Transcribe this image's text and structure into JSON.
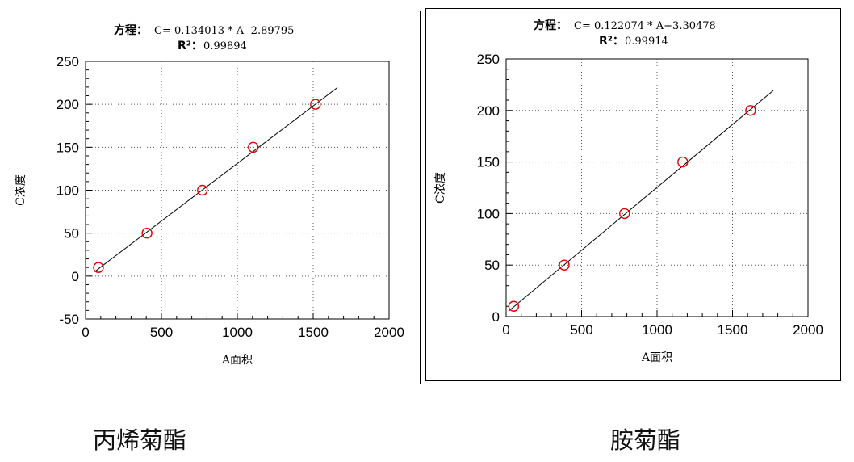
{
  "chart_data": [
    {
      "type": "scatter",
      "equation_prefix": "方程：",
      "equation": "C= 0.134013 * A- 2.89795",
      "r2_label": "R²：",
      "r2_value": "0.99894",
      "xlabel": "A面积",
      "ylabel": "C浓度",
      "xlim": [
        0,
        2000
      ],
      "ylim": [
        -50,
        250
      ],
      "xticks": [
        "0",
        "500",
        "1000",
        "1500",
        "2000"
      ],
      "yticks": [
        "-50",
        "0",
        "50",
        "100",
        "150",
        "200",
        "250"
      ],
      "grid": true,
      "points": {
        "x": [
          85,
          405,
          770,
          1105,
          1515
        ],
        "y": [
          10,
          50,
          100,
          150,
          200
        ]
      },
      "fit_line": {
        "slope": 0.134013,
        "intercept": -2.89795,
        "x_range": [
          60,
          1660
        ]
      },
      "caption": "丙烯菊酯"
    },
    {
      "type": "scatter",
      "equation_prefix": "方程：",
      "equation": "C= 0.122074 * A+3.30478",
      "r2_label": "R²：",
      "r2_value": "0.99914",
      "xlabel": "A面积",
      "ylabel": "C浓度",
      "xlim": [
        0,
        2000
      ],
      "ylim": [
        0,
        250
      ],
      "xticks": [
        "0",
        "500",
        "1000",
        "1500",
        "2000"
      ],
      "yticks": [
        "0",
        "50",
        "100",
        "150",
        "200",
        "250"
      ],
      "grid": true,
      "points": {
        "x": [
          50,
          385,
          785,
          1170,
          1620
        ],
        "y": [
          10,
          50,
          100,
          150,
          200
        ]
      },
      "fit_line": {
        "slope": 0.122074,
        "intercept": 3.30478,
        "x_range": [
          20,
          1770
        ]
      },
      "caption": "胺菊酯"
    }
  ],
  "colors": {
    "marker": "#e60000",
    "line": "#000000",
    "grid": "#555555"
  }
}
